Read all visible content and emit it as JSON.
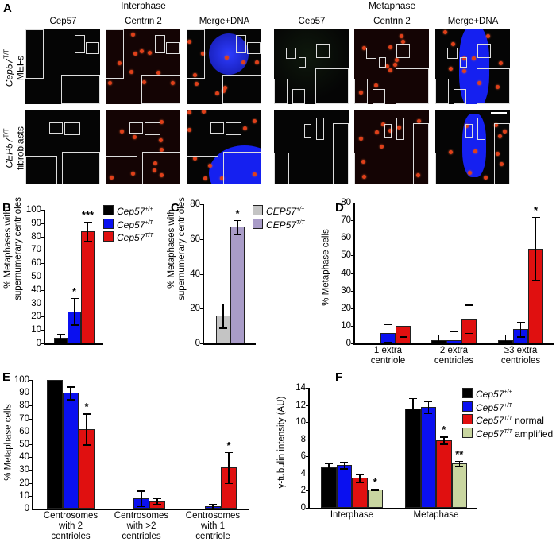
{
  "panel_a": {
    "letter": "A",
    "groups": [
      "Interphase",
      "Metaphase"
    ],
    "columns": [
      "Cep57",
      "Centrin 2",
      "Merge+DNA"
    ],
    "rows": [
      {
        "label": "Cep57",
        "sup": "T/T",
        "sub": "MEFs"
      },
      {
        "label": "CEP57",
        "sup": "T/T",
        "sub": "fibroblasts"
      }
    ]
  },
  "colors": {
    "wt": "#000000",
    "het": "#0a10f0",
    "mut": "#e01010",
    "amplified": "#c9d6a0",
    "human_wt": "#c4c4c4",
    "human_mut": "#a99cc8"
  },
  "chart_data": [
    {
      "letter": "B",
      "type": "bar",
      "ylabel": "% Metaphases with\nsupernumerary centrioles",
      "ylim": [
        0,
        100
      ],
      "yticks": [
        "0",
        "10",
        "20",
        "30",
        "40",
        "50",
        "60",
        "70",
        "80",
        "90",
        "100"
      ],
      "categories": [
        ""
      ],
      "series": [
        {
          "label": "Cep57",
          "sup": "+/+",
          "suffix": "",
          "color": "#000000",
          "values": [
            4
          ],
          "errors": [
            3
          ],
          "stars": [
            ""
          ]
        },
        {
          "label": "Cep57",
          "sup": "+/T",
          "suffix": "",
          "color": "#0a10f0",
          "values": [
            24
          ],
          "errors": [
            10
          ],
          "stars": [
            "*"
          ]
        },
        {
          "label": "Cep57",
          "sup": "T/T",
          "suffix": "",
          "color": "#e01010",
          "values": [
            84
          ],
          "errors": [
            7
          ],
          "stars": [
            "***"
          ]
        }
      ],
      "legend": "top-right"
    },
    {
      "letter": "C",
      "type": "bar",
      "ylabel": "% Metaphases with\nsupernumerary centrioles",
      "ylim": [
        0,
        80
      ],
      "yticks": [
        "0",
        "20",
        "40",
        "60",
        "80"
      ],
      "categories": [
        ""
      ],
      "series": [
        {
          "label": "CEP57",
          "sup": "+/+",
          "suffix": "",
          "color": "#c4c4c4",
          "values": [
            16
          ],
          "errors": [
            7
          ],
          "stars": [
            ""
          ]
        },
        {
          "label": "CEP57",
          "sup": "T/T",
          "suffix": "",
          "color": "#a99cc8",
          "values": [
            67
          ],
          "errors": [
            4
          ],
          "stars": [
            "*"
          ]
        }
      ],
      "legend": "top-right"
    },
    {
      "letter": "D",
      "type": "bar",
      "ylabel": "% Metaphase cells",
      "ylim": [
        0,
        80
      ],
      "yticks": [
        "0",
        "10",
        "20",
        "30",
        "40",
        "50",
        "60",
        "70",
        "80"
      ],
      "categories": [
        "1 extra\ncentriole",
        "2 extra\ncentrioles",
        "≥3 extra\ncentrioles"
      ],
      "series": [
        {
          "color": "#000000",
          "values": [
            0,
            2,
            2
          ],
          "errors": [
            0,
            3,
            3
          ],
          "stars": [
            "",
            "",
            ""
          ]
        },
        {
          "color": "#0a10f0",
          "values": [
            6,
            2,
            8
          ],
          "errors": [
            5,
            5,
            4
          ],
          "stars": [
            "",
            "",
            ""
          ]
        },
        {
          "color": "#e01010",
          "values": [
            10,
            14,
            54
          ],
          "errors": [
            6,
            8,
            18
          ],
          "stars": [
            "",
            "",
            "*"
          ]
        }
      ]
    },
    {
      "letter": "E",
      "type": "bar",
      "ylabel": "% Metaphase cells",
      "ylim": [
        0,
        100
      ],
      "yticks": [
        "0",
        "10",
        "20",
        "30",
        "40",
        "50",
        "60",
        "70",
        "80",
        "90",
        "100"
      ],
      "categories": [
        "Centrosomes\nwith 2\ncentrioles",
        "Centrosomes\nwith >2\ncentrioles",
        "Centrosomes\nwith 1\ncentriole"
      ],
      "series": [
        {
          "color": "#000000",
          "values": [
            100,
            0,
            0
          ],
          "errors": [
            0,
            0,
            0
          ],
          "stars": [
            "",
            "",
            ""
          ]
        },
        {
          "color": "#0a10f0",
          "values": [
            90,
            8,
            2
          ],
          "errors": [
            5,
            6,
            2
          ],
          "stars": [
            "",
            "",
            ""
          ]
        },
        {
          "color": "#e01010",
          "values": [
            62,
            6,
            32
          ],
          "errors": [
            12,
            2.5,
            12
          ],
          "stars": [
            "*",
            "",
            "*"
          ]
        }
      ]
    },
    {
      "letter": "F",
      "type": "bar",
      "ylabel": "γ-tubulin intensity (AU)",
      "ylim": [
        0,
        14
      ],
      "yticks": [
        "0",
        "2",
        "4",
        "6",
        "8",
        "10",
        "12",
        "14"
      ],
      "categories": [
        "Interphase",
        "Metaphase"
      ],
      "series": [
        {
          "label": "Cep57",
          "sup": "+/+",
          "suffix": "",
          "color": "#000000",
          "values": [
            4.7,
            11.6
          ],
          "errors": [
            0.55,
            1.2
          ],
          "stars": [
            "",
            ""
          ]
        },
        {
          "label": "Cep57",
          "sup": "+/T",
          "suffix": "",
          "color": "#0a10f0",
          "values": [
            5.0,
            11.8
          ],
          "errors": [
            0.4,
            0.7
          ],
          "stars": [
            "",
            ""
          ]
        },
        {
          "label": "Cep57",
          "sup": "T/T",
          "suffix": " normal",
          "color": "#e01010",
          "values": [
            3.5,
            7.9
          ],
          "errors": [
            0.45,
            0.4
          ],
          "stars": [
            "",
            "*"
          ]
        },
        {
          "label": "Cep57",
          "sup": "T/T",
          "suffix": " amplified",
          "color": "#c9d6a0",
          "values": [
            2.15,
            5.2
          ],
          "errors": [
            0.1,
            0.3
          ],
          "stars": [
            "*",
            "**"
          ]
        }
      ],
      "legend": "top-right"
    }
  ]
}
